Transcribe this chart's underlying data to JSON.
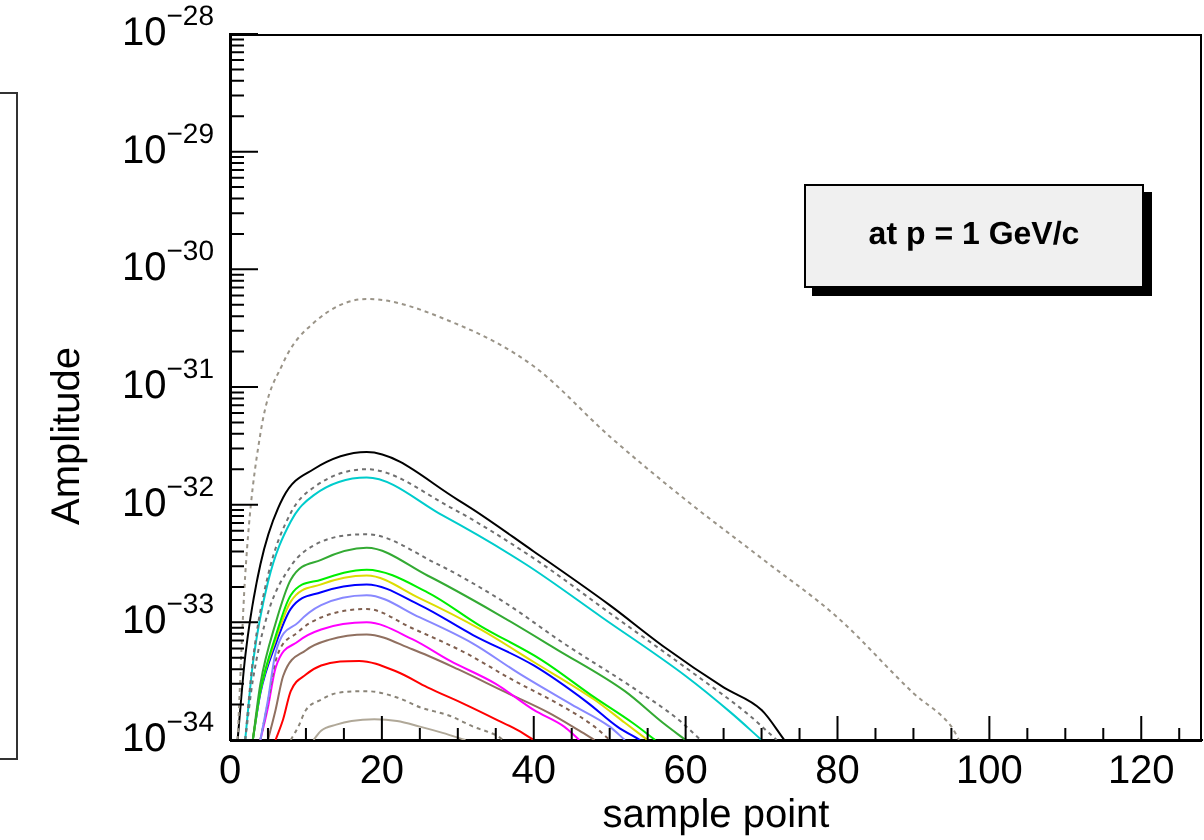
{
  "chart_data": {
    "type": "line",
    "xlabel": "sample point",
    "ylabel": "Amplitude",
    "xlim": [
      0,
      128
    ],
    "ylim": [
      1e-34,
      1e-28
    ],
    "log": "y",
    "xticks": [
      0,
      {
        "value": 5,
        "label": null
      },
      {
        "value": 10,
        "label": null
      },
      {
        "value": 15,
        "label": null
      },
      20,
      {
        "value": 25,
        "label": null
      },
      {
        "value": 30,
        "label": null
      },
      {
        "value": 35,
        "label": null
      },
      40,
      {
        "value": 45,
        "label": null
      },
      {
        "value": 50,
        "label": null
      },
      {
        "value": 55,
        "label": null
      },
      60,
      {
        "value": 65,
        "label": null
      },
      {
        "value": 70,
        "label": null
      },
      {
        "value": 75,
        "label": null
      },
      80,
      {
        "value": 85,
        "label": null
      },
      {
        "value": 90,
        "label": null
      },
      {
        "value": 95,
        "label": null
      },
      100,
      {
        "value": 105,
        "label": null
      },
      {
        "value": 110,
        "label": null
      },
      {
        "value": 115,
        "label": null
      },
      120,
      {
        "value": 125,
        "label": null
      }
    ],
    "yticks": [
      {
        "value": 1e-34,
        "label": "10$^{−34}$"
      },
      {
        "value": 2e-34,
        "label": null
      },
      {
        "value": 3e-34,
        "label": null
      },
      {
        "value": 4e-34,
        "label": null
      },
      {
        "value": 5e-34,
        "label": null
      },
      {
        "value": 6e-34,
        "label": null
      },
      {
        "value": 7e-34,
        "label": null
      },
      {
        "value": 8e-34,
        "label": null
      },
      {
        "value": 9e-34,
        "label": null
      },
      {
        "value": 1e-33,
        "label": "10$^{−33}$"
      },
      {
        "value": 2e-33,
        "label": null
      },
      {
        "value": 3e-33,
        "label": null
      },
      {
        "value": 4e-33,
        "label": null
      },
      {
        "value": 5e-33,
        "label": null
      },
      {
        "value": 6e-33,
        "label": null
      },
      {
        "value": 7e-33,
        "label": null
      },
      {
        "value": 8e-33,
        "label": null
      },
      {
        "value": 9e-33,
        "label": null
      },
      {
        "value": 1e-32,
        "label": "10$^{−32}$"
      },
      {
        "value": 2e-32,
        "label": null
      },
      {
        "value": 3e-32,
        "label": null
      },
      {
        "value": 4e-32,
        "label": null
      },
      {
        "value": 5e-32,
        "label": null
      },
      {
        "value": 6e-32,
        "label": null
      },
      {
        "value": 7e-32,
        "label": null
      },
      {
        "value": 8e-32,
        "label": null
      },
      {
        "value": 9e-32,
        "label": null
      },
      {
        "value": 1e-31,
        "label": "10$^{−31}$"
      },
      {
        "value": 2e-31,
        "label": null
      },
      {
        "value": 3e-31,
        "label": null
      },
      {
        "value": 4e-31,
        "label": null
      },
      {
        "value": 5e-31,
        "label": null
      },
      {
        "value": 6e-31,
        "label": null
      },
      {
        "value": 7e-31,
        "label": null
      },
      {
        "value": 8e-31,
        "label": null
      },
      {
        "value": 9e-31,
        "label": null
      },
      {
        "value": 1e-30,
        "label": "10$^{−30}$"
      },
      {
        "value": 2e-30,
        "label": null
      },
      {
        "value": 3e-30,
        "label": null
      },
      {
        "value": 4e-30,
        "label": null
      },
      {
        "value": 5e-30,
        "label": null
      },
      {
        "value": 6e-30,
        "label": null
      },
      {
        "value": 7e-30,
        "label": null
      },
      {
        "value": 8e-30,
        "label": null
      },
      {
        "value": 9e-30,
        "label": null
      },
      {
        "value": 1e-29,
        "label": "10$^{−29}$"
      },
      {
        "value": 2e-29,
        "label": null
      },
      {
        "value": 3e-29,
        "label": null
      },
      {
        "value": 4e-29,
        "label": null
      },
      {
        "value": 5e-29,
        "label": null
      },
      {
        "value": 6e-29,
        "label": null
      },
      {
        "value": 7e-29,
        "label": null
      },
      {
        "value": 8e-29,
        "label": null
      },
      {
        "value": 9e-29,
        "label": null
      },
      {
        "value": 1e-28,
        "label": "10$^{−28}$"
      }
    ],
    "annotations": [
      "at p = 1 GeV/c"
    ],
    "series": [
      {
        "color": "#9a9488",
        "line_style": "dotted",
        "x": [
          1,
          2,
          4,
          7,
          11,
          18,
          30,
          40,
          50,
          60,
          70,
          80,
          90,
          95,
          96
        ],
        "values": [
          1e-34,
          2.5e-33,
          4e-32,
          1.6e-31,
          3.5e-31,
          5.6e-31,
          3.4e-31,
          1.5e-31,
          3.8e-32,
          1.1e-32,
          3.5e-33,
          1.1e-33,
          2.5e-34,
          1.3e-34,
          1e-34
        ]
      },
      {
        "color": "#000000",
        "x": [
          1,
          2,
          4,
          7,
          11,
          18,
          30,
          40,
          50,
          57,
          65,
          70,
          73
        ],
        "values": [
          1e-34,
          5.1e-34,
          3.1e-33,
          1.15e-32,
          2e-32,
          2.8e-32,
          1.1e-32,
          4e-33,
          1.4e-33,
          6.3e-34,
          2.8e-34,
          1.8e-34,
          1e-34
        ]
      },
      {
        "color": "#707070",
        "line_style": "dotted",
        "x": [
          2,
          3,
          5,
          8,
          11,
          18,
          29,
          40,
          50,
          61,
          68,
          72
        ],
        "values": [
          1e-34,
          4.7e-34,
          2.5e-33,
          8.5e-33,
          1.4e-32,
          2e-32,
          9.5e-33,
          3.5e-33,
          1.2e-33,
          3.7e-34,
          1.7e-34,
          1e-34
        ]
      },
      {
        "color": "#00cccc",
        "x": [
          2,
          3,
          5,
          8,
          11,
          18,
          28,
          39,
          49,
          60,
          66,
          70
        ],
        "values": [
          1e-34,
          4.4e-34,
          2.2e-33,
          7.2e-33,
          1.2e-32,
          1.7e-32,
          8.1e-33,
          3.1e-33,
          1.1e-33,
          3.5e-34,
          1.7e-34,
          1e-34
        ]
      },
      {
        "color": "#707070",
        "line_style": "dotted",
        "x": [
          2,
          3,
          5,
          8,
          11,
          18,
          27,
          36,
          44,
          53,
          59,
          62
        ],
        "values": [
          1e-34,
          3.2e-34,
          1.2e-33,
          3e-33,
          4.5e-33,
          5.6e-33,
          3.2e-33,
          1.5e-33,
          6.6e-34,
          2.8e-34,
          1.5e-34,
          1e-34
        ]
      },
      {
        "color": "#33aa33",
        "x": [
          3,
          4,
          6,
          8,
          12,
          18,
          26,
          35,
          43,
          52,
          57,
          60
        ],
        "values": [
          1e-34,
          3e-34,
          9.8e-34,
          2.3e-33,
          3.4e-33,
          4.3e-33,
          2.5e-33,
          1.2e-33,
          5.9e-34,
          2.6e-34,
          1.4e-34,
          1e-34
        ]
      },
      {
        "color": "#00ee00",
        "x": [
          3,
          4,
          6,
          8,
          12,
          18,
          26,
          33,
          41,
          48,
          53,
          56
        ],
        "values": [
          1e-34,
          2.6e-34,
          7.6e-34,
          1.7e-33,
          2.3e-33,
          2.8e-33,
          1.8e-33,
          9.3e-34,
          4.8e-34,
          2.3e-34,
          1.4e-34,
          1e-34
        ]
      },
      {
        "color": "#dddd00",
        "x": [
          3,
          4,
          6,
          8,
          12,
          18,
          25,
          33,
          40,
          48,
          52,
          55
        ],
        "values": [
          1e-34,
          2.6e-34,
          7.1e-34,
          1.5e-33,
          2.1e-33,
          2.5e-33,
          1.6e-33,
          8.7e-34,
          4.6e-34,
          2.2e-34,
          1.4e-34,
          1e-34
        ]
      },
      {
        "color": "#0000ff",
        "x": [
          3,
          4,
          6,
          8,
          12,
          18,
          25,
          32,
          40,
          47,
          51,
          54
        ],
        "values": [
          1e-34,
          2.5e-34,
          6.5e-34,
          1.3e-33,
          1.8e-33,
          2.1e-33,
          1.4e-33,
          7.8e-34,
          4.3e-34,
          2.1e-34,
          1.3e-34,
          1e-34
        ]
      },
      {
        "color": "#8888ff",
        "x": [
          4,
          5,
          6,
          9,
          12,
          18,
          25,
          32,
          38,
          45,
          50,
          52
        ],
        "values": [
          1e-34,
          2.2e-34,
          5.5e-34,
          1e-33,
          1.4e-33,
          1.7e-33,
          1.1e-33,
          6.6e-34,
          3.7e-34,
          2e-34,
          1.3e-34,
          1e-34
        ]
      },
      {
        "color": "#806050",
        "line_style": "dotted",
        "x": [
          4,
          5,
          6,
          9,
          12,
          18,
          24,
          31,
          37,
          44,
          48,
          50
        ],
        "values": [
          1e-34,
          2.1e-34,
          4.7e-34,
          8.3e-34,
          1.1e-33,
          1.3e-33,
          8.9e-34,
          5.5e-34,
          3.3e-34,
          1.9e-34,
          1.3e-34,
          1e-34
        ]
      },
      {
        "color": "#ff00ff",
        "x": [
          4,
          5,
          6,
          9,
          12,
          18,
          24,
          29,
          35,
          40,
          44,
          46
        ],
        "values": [
          1e-34,
          1.9e-34,
          4.1e-34,
          6.9e-34,
          8.7e-34,
          1e-33,
          7.2e-34,
          4.7e-34,
          3e-34,
          1.8e-34,
          1.3e-34,
          1e-34
        ]
      },
      {
        "color": "#907060",
        "x": [
          5,
          6,
          7,
          10,
          13,
          18,
          24,
          30,
          36,
          42,
          46,
          48
        ],
        "values": [
          1e-34,
          1.8e-34,
          3.5e-34,
          5.8e-34,
          7.1e-34,
          7.9e-34,
          5.9e-34,
          4e-34,
          2.6e-34,
          1.7e-34,
          1.2e-34,
          1e-34
        ]
      },
      {
        "color": "#ff0000",
        "x": [
          6,
          7,
          8,
          10,
          12,
          17,
          22,
          26,
          31,
          35,
          38,
          40
        ],
        "values": [
          1e-34,
          1.5e-34,
          2.6e-34,
          3.6e-34,
          4.3e-34,
          4.7e-34,
          3.8e-34,
          2.8e-34,
          2e-34,
          1.5e-34,
          1.2e-34,
          1e-34
        ]
      },
      {
        "color": "#8a8478",
        "line_style": "dotted",
        "x": [
          8,
          9,
          10,
          12,
          14,
          18,
          22,
          25,
          29,
          32,
          35,
          36
        ],
        "values": [
          1e-34,
          1.3e-34,
          1.8e-34,
          2.2e-34,
          2.5e-34,
          2.6e-34,
          2.3e-34,
          1.9e-34,
          1.6e-34,
          1.3e-34,
          1.1e-34,
          1e-34
        ]
      },
      {
        "color": "#b0a898",
        "x": [
          11,
          12,
          14,
          16,
          19,
          22,
          25,
          28,
          31
        ],
        "values": [
          1e-34,
          1.2e-34,
          1.35e-34,
          1.45e-34,
          1.5e-34,
          1.45e-34,
          1.3e-34,
          1.15e-34,
          1e-34
        ]
      }
    ]
  }
}
